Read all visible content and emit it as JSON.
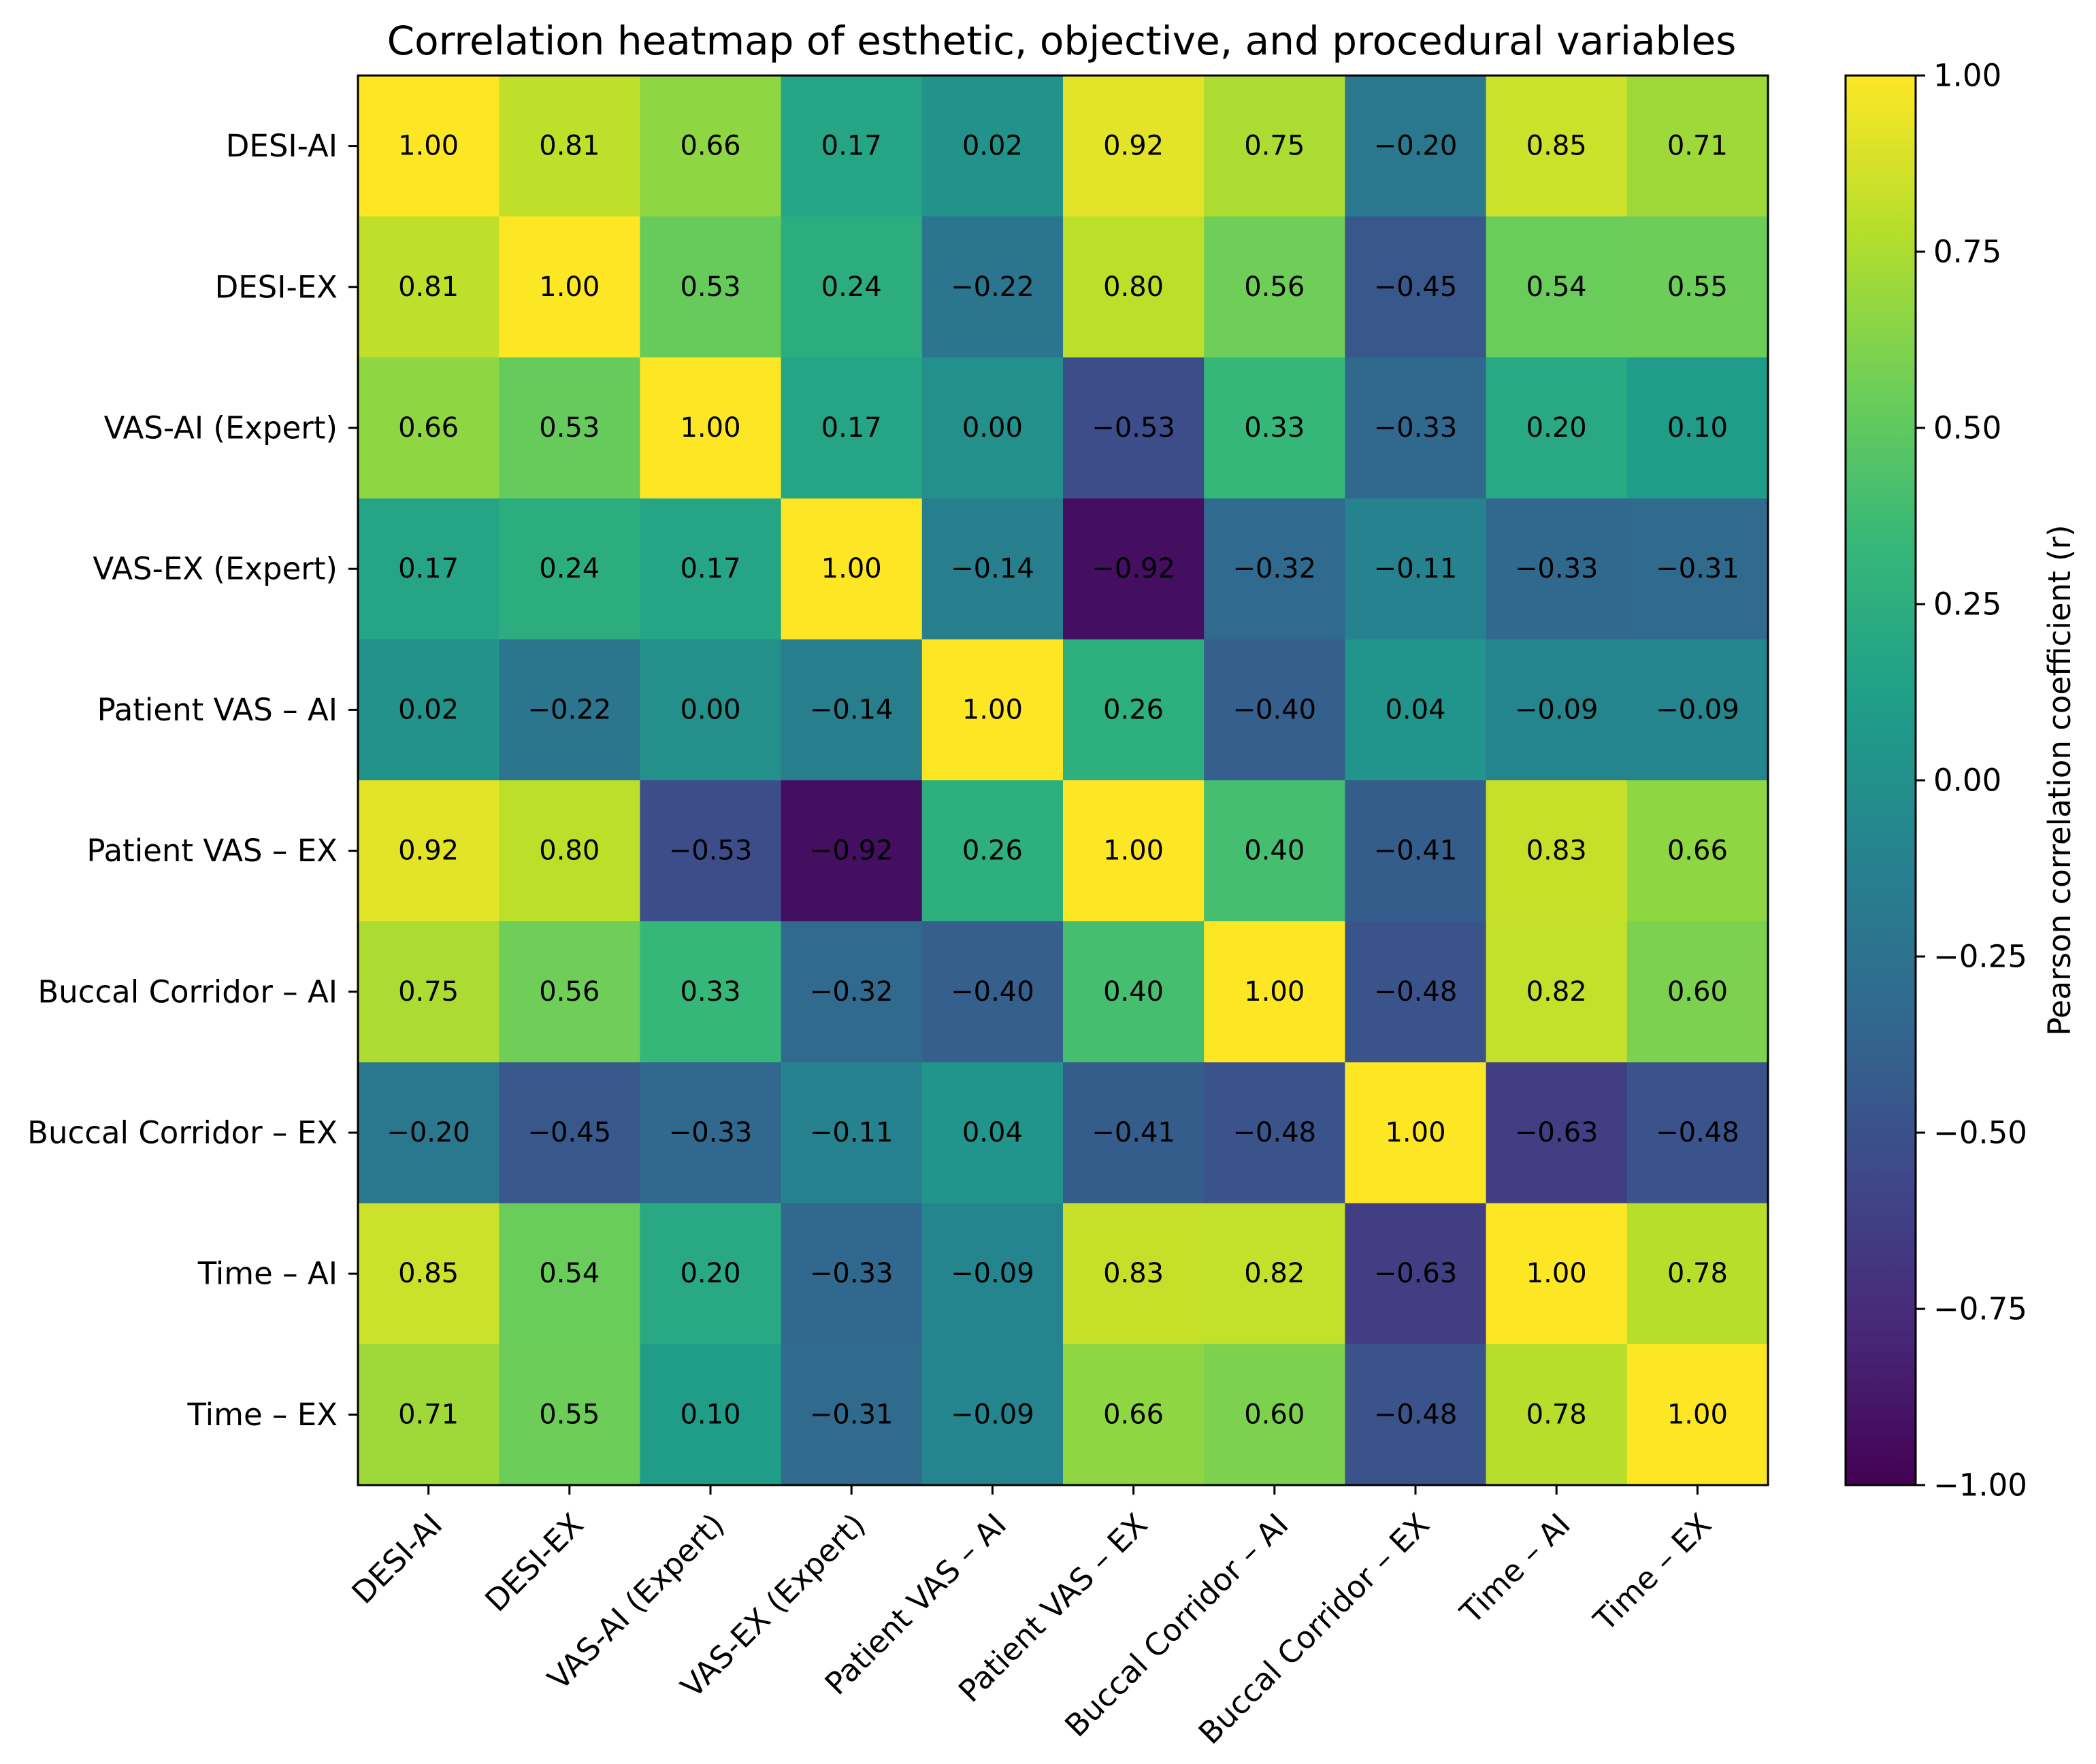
{
  "chart_data": {
    "type": "heatmap",
    "title": "Correlation heatmap of esthetic, objective, and procedural variables",
    "row_labels": [
      "DESI-AI",
      "DESI-EX",
      "VAS-AI (Expert)",
      "VAS-EX (Expert)",
      "Patient VAS – AI",
      "Patient VAS – EX",
      "Buccal Corridor – AI",
      "Buccal Corridor – EX",
      "Time – AI",
      "Time – EX"
    ],
    "col_labels": [
      "DESI-AI",
      "DESI-EX",
      "VAS-AI (Expert)",
      "VAS-EX (Expert)",
      "Patient VAS – AI",
      "Patient VAS – EX",
      "Buccal Corridor – AI",
      "Buccal Corridor – EX",
      "Time – AI",
      "Time – EX"
    ],
    "values": [
      [
        1.0,
        0.81,
        0.66,
        0.17,
        0.02,
        0.92,
        0.75,
        -0.2,
        0.85,
        0.71
      ],
      [
        0.81,
        1.0,
        0.53,
        0.24,
        -0.22,
        0.8,
        0.56,
        -0.45,
        0.54,
        0.55
      ],
      [
        0.66,
        0.53,
        1.0,
        0.17,
        0.0,
        -0.53,
        0.33,
        -0.33,
        0.2,
        0.1
      ],
      [
        0.17,
        0.24,
        0.17,
        1.0,
        -0.14,
        -0.92,
        -0.32,
        -0.11,
        -0.33,
        -0.31
      ],
      [
        0.02,
        -0.22,
        0.0,
        -0.14,
        1.0,
        0.26,
        -0.4,
        0.04,
        -0.09,
        -0.09
      ],
      [
        0.92,
        0.8,
        -0.53,
        -0.92,
        0.26,
        1.0,
        0.4,
        -0.41,
        0.83,
        0.66
      ],
      [
        0.75,
        0.56,
        0.33,
        -0.32,
        -0.4,
        0.4,
        1.0,
        -0.48,
        0.82,
        0.6
      ],
      [
        -0.2,
        -0.45,
        -0.33,
        -0.11,
        0.04,
        -0.41,
        -0.48,
        1.0,
        -0.63,
        -0.48
      ],
      [
        0.85,
        0.54,
        0.2,
        -0.33,
        -0.09,
        0.83,
        0.82,
        -0.63,
        1.0,
        0.78
      ],
      [
        0.71,
        0.55,
        0.1,
        -0.31,
        -0.09,
        0.66,
        0.6,
        -0.48,
        0.78,
        1.0
      ]
    ],
    "value_format": "2 decimals, unicode minus",
    "colorbar": {
      "label": "Pearson correlation coefficient (r)",
      "range": [
        -1.0,
        1.0
      ],
      "ticks": [
        1.0,
        0.75,
        0.5,
        0.25,
        0.0,
        -0.25,
        -0.5,
        -0.75,
        -1.0
      ],
      "tick_labels": [
        "1.00",
        "0.75",
        "0.50",
        "0.25",
        "0.00",
        "−0.25",
        "−0.50",
        "−0.75",
        "−1.00"
      ]
    },
    "colormap": "viridis",
    "colormap_stops": [
      "#440154",
      "#482878",
      "#3e4989",
      "#31688e",
      "#26828e",
      "#1f9e89",
      "#35b779",
      "#6ece58",
      "#b5de2b",
      "#fde725"
    ]
  }
}
